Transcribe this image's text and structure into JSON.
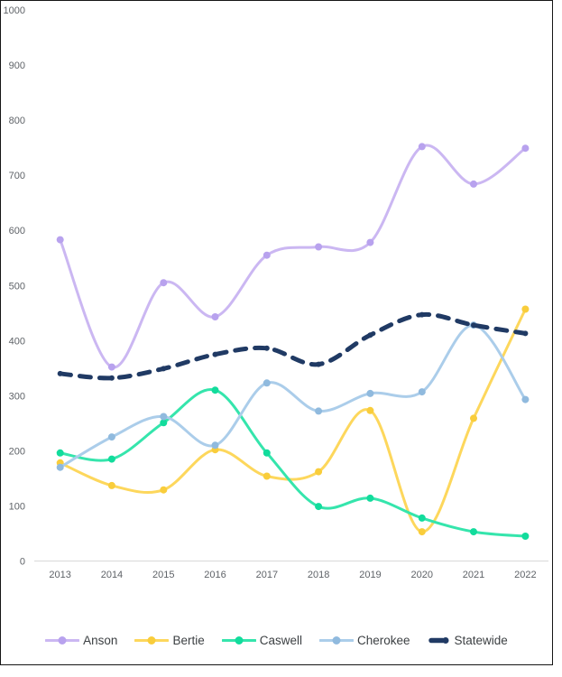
{
  "window": {
    "background": "#ffffff",
    "frame_border_color": "#161616"
  },
  "chart_data": {
    "type": "line",
    "title": "",
    "xlabel": "",
    "ylabel": "",
    "x_labels": [
      "2013",
      "2014",
      "2015",
      "2016",
      "2017",
      "2018",
      "2019",
      "2020",
      "2021",
      "2022"
    ],
    "ylim": [
      0,
      1000
    ],
    "y_tick_step": 100,
    "y_tick_labels": [
      "0",
      "100",
      "200",
      "300",
      "400",
      "500",
      "600",
      "700",
      "800",
      "900",
      "1000"
    ],
    "grid": false,
    "legend_position": "bottom",
    "series": [
      {
        "name": "Anson",
        "style": "solid",
        "line_color": "#cbb7f2",
        "marker_color": "#b8a2ee",
        "values": [
          583,
          352,
          505,
          443,
          555,
          570,
          578,
          752,
          684,
          749
        ]
      },
      {
        "name": "Bertie",
        "style": "solid",
        "line_color": "#fdd75c",
        "marker_color": "#f9cd3b",
        "values": [
          178,
          137,
          129,
          202,
          154,
          162,
          273,
          53,
          259,
          457
        ]
      },
      {
        "name": "Caswell",
        "style": "solid",
        "line_color": "#35e5ac",
        "marker_color": "#12dc9c",
        "values": [
          196,
          185,
          251,
          310,
          196,
          99,
          114,
          78,
          53,
          45
        ]
      },
      {
        "name": "Cherokee",
        "style": "solid",
        "line_color": "#abcdea",
        "marker_color": "#90bade",
        "values": [
          170,
          225,
          262,
          210,
          323,
          272,
          304,
          307,
          428,
          293
        ]
      },
      {
        "name": "Statewide",
        "style": "dashed",
        "line_color": "#203a64",
        "marker_color": "#203a64",
        "values": [
          340,
          332,
          349,
          375,
          386,
          357,
          410,
          447,
          428,
          413
        ]
      }
    ]
  },
  "styles": {
    "axis_text_color": "#5f6368",
    "legend_text_color": "#3c4043",
    "axis_line_color": "#d8d8d8"
  }
}
